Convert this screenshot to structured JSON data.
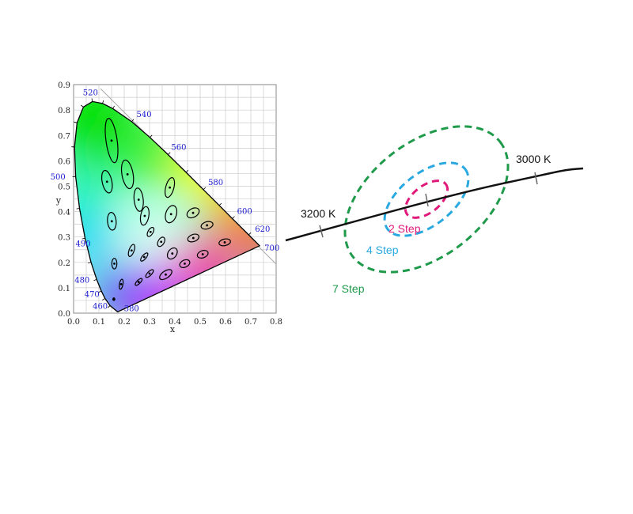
{
  "chart_data": {
    "type": "scatter",
    "title": "",
    "xlabel": "x",
    "ylabel": "y",
    "xlim": [
      0,
      0.8
    ],
    "ylim": [
      0,
      0.9
    ],
    "xticks": [
      "0.0",
      "0.1",
      "0.2",
      "0.3",
      "0.4",
      "0.5",
      "0.6",
      "0.7",
      "0.8"
    ],
    "yticks": [
      "0.0",
      "0.1",
      "0.2",
      "0.3",
      "0.4",
      "0.5",
      "0.6",
      "0.7",
      "0.8",
      "0.9"
    ],
    "grid": true,
    "spectral_locus": [
      [
        380,
        0.1741,
        0.005
      ],
      [
        460,
        0.144,
        0.0297
      ],
      [
        470,
        0.1241,
        0.0578
      ],
      [
        475,
        0.1096,
        0.0868
      ],
      [
        480,
        0.0913,
        0.1327
      ],
      [
        485,
        0.0687,
        0.2007
      ],
      [
        490,
        0.0454,
        0.295
      ],
      [
        495,
        0.0235,
        0.4127
      ],
      [
        500,
        0.0082,
        0.5384
      ],
      [
        505,
        0.0039,
        0.6548
      ],
      [
        510,
        0.0139,
        0.7502
      ],
      [
        515,
        0.0389,
        0.812
      ],
      [
        520,
        0.0743,
        0.8338
      ],
      [
        525,
        0.1142,
        0.8262
      ],
      [
        530,
        0.1547,
        0.8059
      ],
      [
        540,
        0.2296,
        0.7543
      ],
      [
        550,
        0.3016,
        0.6923
      ],
      [
        560,
        0.3731,
        0.6245
      ],
      [
        570,
        0.4441,
        0.5547
      ],
      [
        580,
        0.5125,
        0.4866
      ],
      [
        590,
        0.5752,
        0.4242
      ],
      [
        600,
        0.627,
        0.3725
      ],
      [
        620,
        0.6915,
        0.3083
      ],
      [
        700,
        0.7347,
        0.2653
      ]
    ],
    "wavelength_labels": [
      "380",
      "460",
      "470",
      "480",
      "490",
      "500",
      "520",
      "540",
      "560",
      "580",
      "600",
      "620",
      "700"
    ],
    "macadam_ellipses": [
      {
        "x": 0.15,
        "y": 0.68,
        "a": 0.022,
        "b": 0.088,
        "rot": -8
      },
      {
        "x": 0.213,
        "y": 0.547,
        "a": 0.022,
        "b": 0.057,
        "rot": -10
      },
      {
        "x": 0.132,
        "y": 0.518,
        "a": 0.019,
        "b": 0.045,
        "rot": -12
      },
      {
        "x": 0.257,
        "y": 0.447,
        "a": 0.018,
        "b": 0.046,
        "rot": -6
      },
      {
        "x": 0.281,
        "y": 0.383,
        "a": 0.016,
        "b": 0.037,
        "rot": 10
      },
      {
        "x": 0.151,
        "y": 0.362,
        "a": 0.017,
        "b": 0.035,
        "rot": -5
      },
      {
        "x": 0.38,
        "y": 0.495,
        "a": 0.016,
        "b": 0.04,
        "rot": 15
      },
      {
        "x": 0.385,
        "y": 0.39,
        "a": 0.021,
        "b": 0.035,
        "rot": 18
      },
      {
        "x": 0.472,
        "y": 0.395,
        "a": 0.026,
        "b": 0.017,
        "rot": -30
      },
      {
        "x": 0.527,
        "y": 0.346,
        "a": 0.024,
        "b": 0.014,
        "rot": -15
      },
      {
        "x": 0.304,
        "y": 0.32,
        "a": 0.01,
        "b": 0.02,
        "rot": 30
      },
      {
        "x": 0.346,
        "y": 0.281,
        "a": 0.012,
        "b": 0.02,
        "rot": 30
      },
      {
        "x": 0.473,
        "y": 0.296,
        "a": 0.023,
        "b": 0.014,
        "rot": -20
      },
      {
        "x": 0.597,
        "y": 0.279,
        "a": 0.023,
        "b": 0.013,
        "rot": -12
      },
      {
        "x": 0.229,
        "y": 0.247,
        "a": 0.01,
        "b": 0.025,
        "rot": 20
      },
      {
        "x": 0.279,
        "y": 0.221,
        "a": 0.008,
        "b": 0.02,
        "rot": 40
      },
      {
        "x": 0.39,
        "y": 0.235,
        "a": 0.017,
        "b": 0.024,
        "rot": 35
      },
      {
        "x": 0.51,
        "y": 0.232,
        "a": 0.022,
        "b": 0.014,
        "rot": -20
      },
      {
        "x": 0.161,
        "y": 0.195,
        "a": 0.01,
        "b": 0.021,
        "rot": 0
      },
      {
        "x": 0.439,
        "y": 0.195,
        "a": 0.021,
        "b": 0.014,
        "rot": -25
      },
      {
        "x": 0.3,
        "y": 0.156,
        "a": 0.008,
        "b": 0.02,
        "rot": 45
      },
      {
        "x": 0.364,
        "y": 0.152,
        "a": 0.028,
        "b": 0.014,
        "rot": -35
      },
      {
        "x": 0.188,
        "y": 0.114,
        "a": 0.007,
        "b": 0.02,
        "rot": 10
      },
      {
        "x": 0.257,
        "y": 0.123,
        "a": 0.007,
        "b": 0.018,
        "rot": 45
      },
      {
        "x": 0.159,
        "y": 0.055,
        "a": 0.004,
        "b": 0.005,
        "rot": 0
      }
    ]
  },
  "step_diagram": {
    "labels": {
      "cct_low": "3200 K",
      "cct_high": "3000 K",
      "step2": "2 Step",
      "step4": "4 Step",
      "step7": "7 Step"
    },
    "colors": {
      "step2": "#e0197a",
      "step4": "#29a9e0",
      "step7": "#1e9a4a",
      "locus": "#111111"
    }
  }
}
